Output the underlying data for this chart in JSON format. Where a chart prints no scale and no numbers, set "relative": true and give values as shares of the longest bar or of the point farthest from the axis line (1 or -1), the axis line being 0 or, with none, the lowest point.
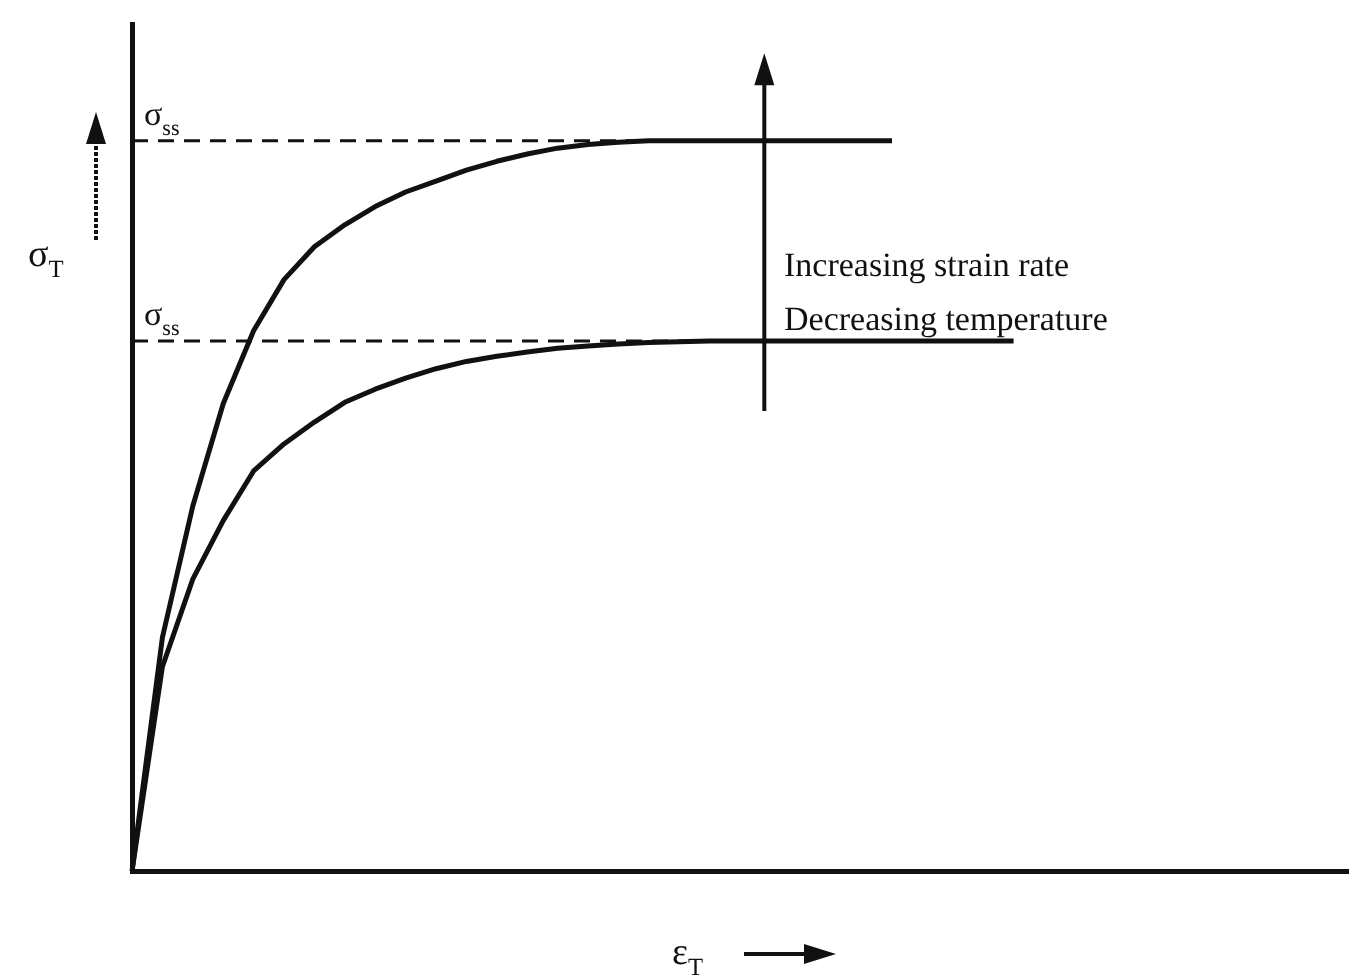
{
  "chart_data": {
    "type": "line",
    "relative": true,
    "xlabel": "ε$_{T}$",
    "ylabel": "σ$_{T}$",
    "categories": [
      null,
      null,
      null,
      null,
      null,
      null,
      null,
      null,
      null,
      null,
      null,
      null,
      null,
      null,
      null,
      null,
      null,
      null,
      null,
      null,
      null,
      null,
      null,
      null,
      null,
      null,
      null,
      null,
      null,
      null,
      null,
      null,
      null,
      null,
      null,
      null,
      null,
      null,
      null,
      null,
      null
    ],
    "series": [
      {
        "color": "#111111",
        "values": [
          0,
          0.32,
          0.5,
          0.64,
          0.74,
          0.81,
          0.855,
          0.885,
          0.91,
          0.93,
          0.945,
          0.96,
          0.972,
          0.982,
          0.99,
          0.995,
          0.998,
          1,
          1,
          1,
          1,
          1,
          1,
          1,
          1,
          1,
          null,
          null,
          null,
          null,
          null,
          null,
          null,
          null,
          null,
          null,
          null,
          null,
          null,
          null,
          null
        ]
      },
      {
        "color": "#111111",
        "values": [
          0,
          0.28,
          0.4,
          0.48,
          0.548,
          0.585,
          0.615,
          0.642,
          0.66,
          0.675,
          0.688,
          0.698,
          0.705,
          0.711,
          0.716,
          0.719,
          0.722,
          0.724,
          0.725,
          0.726,
          0.726,
          0.726,
          0.726,
          0.726,
          0.726,
          0.726,
          0.726,
          0.726,
          0.726,
          0.726,
          null,
          null,
          null,
          null,
          null,
          null,
          null,
          null,
          null,
          null,
          null
        ]
      }
    ],
    "ref_lines": [
      {
        "axis": "y",
        "value": 1,
        "label": "σ$_{ss}$",
        "line_style": "dashed"
      },
      {
        "axis": "y",
        "value": 0.726,
        "label": "σ$_{ss}$",
        "line_style": "dashed"
      }
    ],
    "annotations": [
      "Increasing strain rate",
      "Decreasing temperature"
    ],
    "legend": false,
    "grid": false,
    "marker": "none",
    "line_style": "solid"
  }
}
